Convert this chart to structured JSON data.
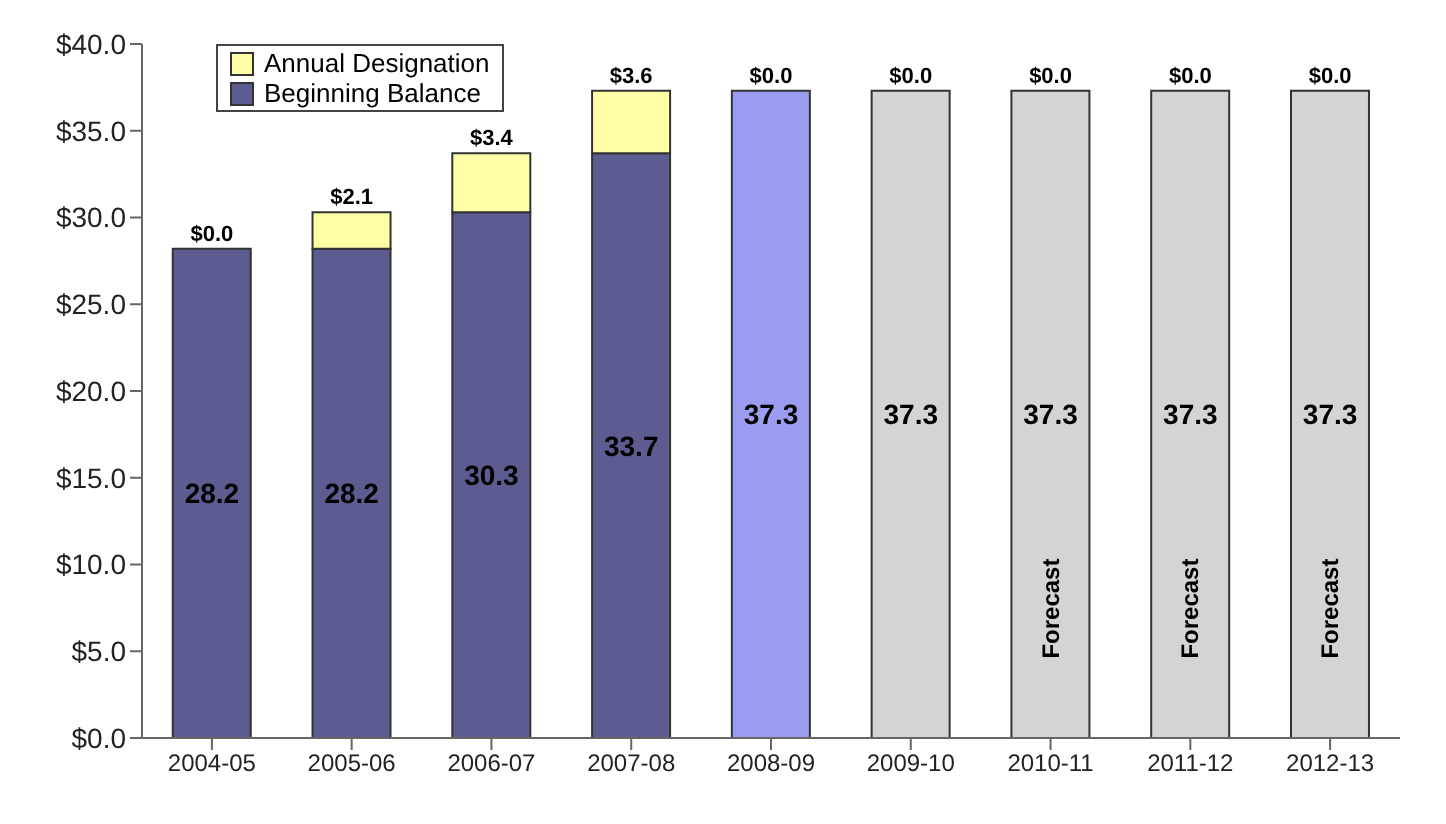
{
  "chart_data": {
    "type": "bar",
    "stacked": true,
    "categories": [
      "2004-05",
      "2005-06",
      "2006-07",
      "2007-08",
      "2008-09",
      "2009-10",
      "2010-11",
      "2011-12",
      "2012-13"
    ],
    "series": [
      {
        "name": "Beginning Balance",
        "color": "#5c5c90",
        "colors": [
          "#5c5c90",
          "#5c5c90",
          "#5c5c90",
          "#5c5c90",
          "#9c9cf0",
          "#d4d4d4",
          "#d4d4d4",
          "#d4d4d4",
          "#d4d4d4"
        ],
        "values": [
          28.2,
          28.2,
          30.3,
          33.7,
          37.3,
          37.3,
          37.3,
          37.3,
          37.3
        ],
        "value_labels": [
          "28.2",
          "28.2",
          "30.3",
          "33.7",
          "37.3",
          "37.3",
          "37.3",
          "37.3",
          "37.3"
        ]
      },
      {
        "name": "Annual Designation",
        "color": "#ffffa8",
        "values": [
          0.0,
          2.1,
          3.4,
          3.6,
          0.0,
          0.0,
          0.0,
          0.0,
          0.0
        ],
        "value_labels": [
          "$0.0",
          "$2.1",
          "$3.4",
          "$3.6",
          "$0.0",
          "$0.0",
          "$0.0",
          "$0.0",
          "$0.0"
        ]
      }
    ],
    "ylim": [
      0,
      40
    ],
    "yticks": [
      {
        "value": 0,
        "label": "$0.0"
      },
      {
        "value": 5,
        "label": "$5.0"
      },
      {
        "value": 10,
        "label": "$10.0"
      },
      {
        "value": 15,
        "label": "$15.0"
      },
      {
        "value": 20,
        "label": "$20.0"
      },
      {
        "value": 25,
        "label": "$25.0"
      },
      {
        "value": 30,
        "label": "$30.0"
      },
      {
        "value": 35,
        "label": "$35.0"
      },
      {
        "value": 40,
        "label": "$40.0"
      }
    ],
    "legend": "top left",
    "annotations": [
      "Forecast",
      "Forecast",
      "Forecast"
    ]
  }
}
